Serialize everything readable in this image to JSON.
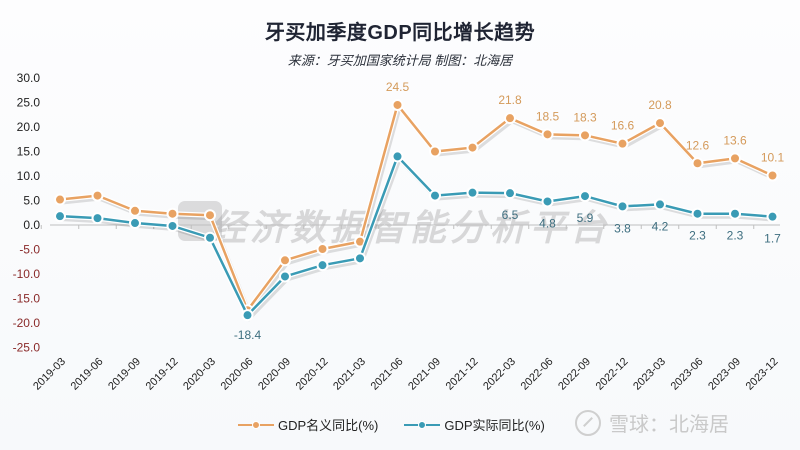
{
  "header": {
    "title": "牙买加季度GDP同比增长趋势",
    "subtitle": "来源：牙买加国家统计局 制图：北海居"
  },
  "watermark": {
    "text": "经济数据智能分析平台",
    "brand": "雪球：北海居"
  },
  "legend": {
    "items": [
      {
        "label": "GDP名义同比(%)",
        "color": "#e8a262"
      },
      {
        "label": "GDP实际同比(%)",
        "color": "#3a9bb5"
      }
    ]
  },
  "colors": {
    "nominal": "#e8a262",
    "real": "#3a9bb5",
    "axis": "#bfbfbf",
    "negative_tick": "#8a2a2a"
  },
  "chart_data": {
    "type": "line",
    "title": "牙买加季度GDP同比增长趋势",
    "subtitle": "来源：牙买加国家统计局 制图：北海居",
    "xlabel": "",
    "ylabel": "",
    "ylim": [
      -25,
      30
    ],
    "yticks": [
      "30.0",
      "25.0",
      "20.0",
      "15.0",
      "10.0",
      "5.0",
      "0.0",
      "-5.0",
      "-10.0",
      "-15.0",
      "-20.0",
      "-25.0"
    ],
    "grid": false,
    "legend_position": "bottom",
    "categories": [
      "2019-03",
      "2019-06",
      "2019-09",
      "2019-12",
      "2020-03",
      "2020-06",
      "2020-09",
      "2020-12",
      "2021-03",
      "2021-06",
      "2021-09",
      "2021-12",
      "2022-03",
      "2022-06",
      "2022-09",
      "2022-12",
      "2023-03",
      "2023-06",
      "2023-09",
      "2023-12"
    ],
    "series": [
      {
        "name": "GDP名义同比(%)",
        "values": [
          5.2,
          6.0,
          2.9,
          2.3,
          2.0,
          -17.4,
          -7.2,
          -4.9,
          -3.4,
          24.5,
          15.0,
          15.8,
          21.8,
          18.5,
          18.3,
          16.6,
          20.8,
          12.6,
          13.6,
          10.1
        ],
        "labels": {
          "9": "24.5",
          "12": "21.8",
          "13": "18.5",
          "14": "18.3",
          "15": "16.6",
          "16": "20.8",
          "17": "12.6",
          "18": "13.6",
          "19": "10.1"
        }
      },
      {
        "name": "GDP实际同比(%)",
        "values": [
          1.8,
          1.4,
          0.4,
          -0.2,
          -2.6,
          -18.4,
          -10.5,
          -8.2,
          -6.8,
          14.0,
          6.0,
          6.6,
          6.5,
          4.8,
          5.9,
          3.8,
          4.2,
          2.3,
          2.3,
          1.7
        ],
        "labels": {
          "5": "-18.4",
          "12": "6.5",
          "13": "4.8",
          "14": "5.9",
          "15": "3.8",
          "16": "4.2",
          "17": "2.3",
          "18": "2.3",
          "19": "1.7"
        }
      }
    ]
  }
}
